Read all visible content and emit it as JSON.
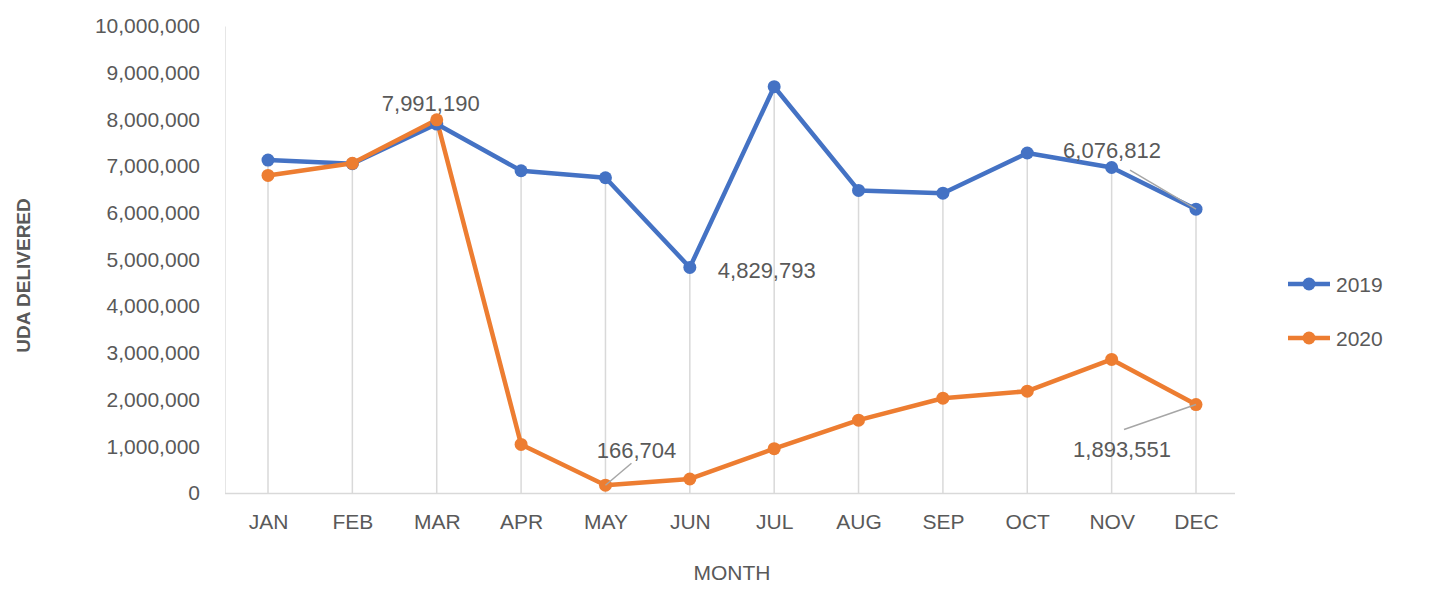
{
  "chart_data": {
    "type": "line",
    "x_label": "MONTH",
    "y_label": "UDA DELIVERED",
    "categories": [
      "JAN",
      "FEB",
      "MAR",
      "APR",
      "MAY",
      "JUN",
      "JUL",
      "AUG",
      "SEP",
      "OCT",
      "NOV",
      "DEC"
    ],
    "series": [
      {
        "name": "2019",
        "color": "#4472c4",
        "marker": "circle",
        "values": [
          7130000,
          7050000,
          7900000,
          6900000,
          6750000,
          4829793,
          8700000,
          6480000,
          6420000,
          7280000,
          6970000,
          6076812
        ]
      },
      {
        "name": "2020",
        "color": "#ed7d31",
        "marker": "circle",
        "values": [
          6800000,
          7060000,
          7991190,
          1040000,
          166704,
          300000,
          950000,
          1560000,
          2030000,
          2180000,
          2860000,
          1893551
        ]
      }
    ],
    "annotations": [
      {
        "text": "7,991,190",
        "series": 1,
        "index": 2
      },
      {
        "text": "4,829,793",
        "series": 0,
        "index": 5
      },
      {
        "text": "6,076,812",
        "series": 0,
        "index": 11
      },
      {
        "text": "166,704",
        "series": 1,
        "index": 4
      },
      {
        "text": "1,893,551",
        "series": 1,
        "index": 11
      }
    ],
    "ylim": [
      0,
      10000000
    ],
    "yticks": [
      {
        "value": 0,
        "label": "0"
      },
      {
        "value": 1000000,
        "label": "1,000,000"
      },
      {
        "value": 2000000,
        "label": "2,000,000"
      },
      {
        "value": 3000000,
        "label": "3,000,000"
      },
      {
        "value": 4000000,
        "label": "4,000,000"
      },
      {
        "value": 5000000,
        "label": "5,000,000"
      },
      {
        "value": 6000000,
        "label": "6,000,000"
      },
      {
        "value": 7000000,
        "label": "7,000,000"
      },
      {
        "value": 8000000,
        "label": "8,000,000"
      },
      {
        "value": 9000000,
        "label": "9,000,000"
      },
      {
        "value": 10000000,
        "label": "10,000,000"
      }
    ],
    "grid": true,
    "legend": "right"
  }
}
